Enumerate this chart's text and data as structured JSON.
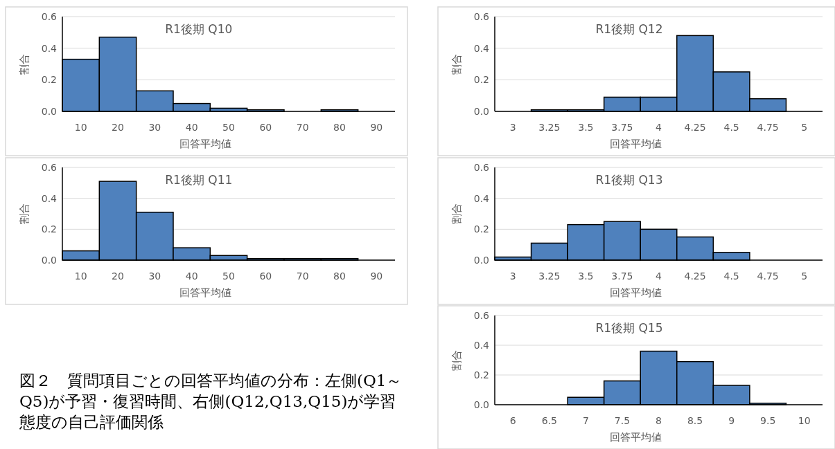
{
  "chart_data": [
    {
      "type": "bar",
      "title": "R1後期 Q10",
      "xlabel": "回答平均値",
      "ylabel": "割合",
      "categories": [
        "10",
        "20",
        "30",
        "40",
        "50",
        "60",
        "70",
        "80",
        "90"
      ],
      "values": [
        0.33,
        0.47,
        0.13,
        0.05,
        0.02,
        0.01,
        0,
        0.01,
        0
      ],
      "color": "#4f81bd",
      "ylim": [
        0,
        0.6
      ],
      "yticks": [
        {
          "value": 0,
          "label": "0.0"
        },
        {
          "value": 0.2,
          "label": "0.2"
        },
        {
          "value": 0.4,
          "label": "0.4"
        },
        {
          "value": 0.6,
          "label": "0.6"
        }
      ],
      "grid": "y"
    },
    {
      "type": "bar",
      "title": "R1後期 Q11",
      "xlabel": "回答平均値",
      "ylabel": "割合",
      "categories": [
        "10",
        "20",
        "30",
        "40",
        "50",
        "60",
        "70",
        "80",
        "90"
      ],
      "values": [
        0.06,
        0.51,
        0.31,
        0.08,
        0.03,
        0.01,
        0.01,
        0.01,
        0
      ],
      "color": "#4f81bd",
      "ylim": [
        0,
        0.6
      ],
      "yticks": [
        {
          "value": 0,
          "label": "0.0"
        },
        {
          "value": 0.2,
          "label": "0.2"
        },
        {
          "value": 0.4,
          "label": "0.4"
        },
        {
          "value": 0.6,
          "label": "0.6"
        }
      ],
      "grid": "y"
    },
    {
      "type": "bar",
      "title": "R1後期 Q12",
      "xlabel": "回答平均値",
      "ylabel": "割合",
      "categories": [
        "3",
        "3.25",
        "3.5",
        "3.75",
        "4",
        "4.25",
        "4.5",
        "4.75",
        "5"
      ],
      "values": [
        0,
        0.01,
        0.01,
        0.09,
        0.09,
        0.48,
        0.25,
        0.08,
        0
      ],
      "color": "#4f81bd",
      "ylim": [
        0,
        0.6
      ],
      "yticks": [
        {
          "value": 0,
          "label": "0.0"
        },
        {
          "value": 0.2,
          "label": "0.2"
        },
        {
          "value": 0.4,
          "label": "0.4"
        },
        {
          "value": 0.6,
          "label": "0.6"
        }
      ],
      "grid": "y"
    },
    {
      "type": "bar",
      "title": "R1後期 Q13",
      "xlabel": "回答平均値",
      "ylabel": "割合",
      "categories": [
        "3",
        "3.25",
        "3.5",
        "3.75",
        "4",
        "4.25",
        "4.5",
        "4.75",
        "5"
      ],
      "values": [
        0.02,
        0.11,
        0.23,
        0.25,
        0.2,
        0.15,
        0.05,
        0,
        0
      ],
      "color": "#4f81bd",
      "ylim": [
        0,
        0.6
      ],
      "yticks": [
        {
          "value": 0,
          "label": "0.0"
        },
        {
          "value": 0.2,
          "label": "0.2"
        },
        {
          "value": 0.4,
          "label": "0.4"
        },
        {
          "value": 0.6,
          "label": "0.6"
        }
      ],
      "grid": "y"
    },
    {
      "type": "bar",
      "title": "R1後期 Q15",
      "xlabel": "回答平均値",
      "ylabel": "割合",
      "categories": [
        "6",
        "6.5",
        "7",
        "7.5",
        "8",
        "8.5",
        "9",
        "9.5",
        "10"
      ],
      "values": [
        0,
        0,
        0.05,
        0.16,
        0.36,
        0.29,
        0.13,
        0.01,
        0
      ],
      "color": "#4f81bd",
      "ylim": [
        0,
        0.6
      ],
      "yticks": [
        {
          "value": 0,
          "label": "0.0"
        },
        {
          "value": 0.2,
          "label": "0.2"
        },
        {
          "value": 0.4,
          "label": "0.4"
        },
        {
          "value": 0.6,
          "label": "0.6"
        }
      ],
      "grid": "y"
    },
    {
      "type": "other",
      "annotations": [
        "図２　質問項目ごとの回答平均値の分布：左側(Q1～Q5)が予習・復習時間、右側(Q12,Q13,Q15)が学習態度の自己評価関係"
      ]
    }
  ]
}
